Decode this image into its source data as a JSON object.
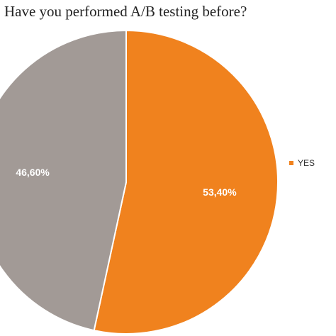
{
  "chart_data": {
    "type": "pie",
    "title": "Have you performed A/B testing before?",
    "slices": [
      {
        "label": "YES",
        "value": 53.4,
        "display": "53,40%",
        "color": "#F0821E",
        "in_legend": true
      },
      {
        "label": "",
        "value": 46.6,
        "display": "46,60%",
        "color": "#A29A96",
        "in_legend": false
      }
    ],
    "start_angle_deg": 0,
    "direction": "clockwise",
    "legend_position": "right",
    "slice_border_color": "#ffffff"
  }
}
